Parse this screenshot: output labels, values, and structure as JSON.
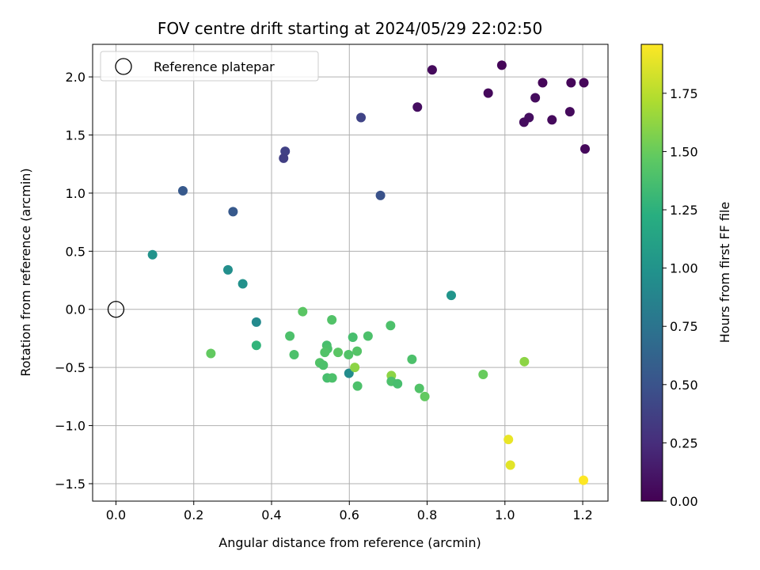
{
  "chart_data": {
    "type": "scatter",
    "title": "FOV centre drift starting at 2024/05/29 22:02:50",
    "xlabel": "Angular distance from reference (arcmin)",
    "ylabel": "Rotation from reference (arcmin)",
    "xlim": [
      -0.06,
      1.265
    ],
    "ylim": [
      -1.65,
      2.28
    ],
    "xticks": [
      0.0,
      0.2,
      0.4,
      0.6,
      0.8,
      1.0,
      1.2
    ],
    "xtick_labels": [
      "0.0",
      "0.2",
      "0.4",
      "0.6",
      "0.8",
      "1.0",
      "1.2"
    ],
    "yticks": [
      -1.5,
      -1.0,
      -0.5,
      0.0,
      0.5,
      1.0,
      1.5,
      2.0
    ],
    "ytick_labels": [
      "−1.5",
      "−1.0",
      "−0.5",
      "0.0",
      "0.5",
      "1.0",
      "1.5",
      "2.0"
    ],
    "grid": true,
    "legend": {
      "placement": "upper-left",
      "entries": [
        "Reference platepar"
      ]
    },
    "reference_point": {
      "x": 0.0,
      "y": 0.0,
      "label": "Reference platepar"
    },
    "colorbar": {
      "label": "Hours from first FF file",
      "colormap": "viridis",
      "range": [
        0.0,
        1.96
      ],
      "ticks": [
        0.0,
        0.25,
        0.5,
        0.75,
        1.0,
        1.25,
        1.5,
        1.75
      ],
      "tick_labels": [
        "0.00",
        "0.25",
        "0.50",
        "0.75",
        "1.00",
        "1.25",
        "1.50",
        "1.75"
      ]
    },
    "series": [
      {
        "points": [
          {
            "x": 0.992,
            "y": 2.1,
            "c": 0.02
          },
          {
            "x": 0.813,
            "y": 2.06,
            "c": 0.05
          },
          {
            "x": 1.097,
            "y": 1.95,
            "c": 0.03
          },
          {
            "x": 1.17,
            "y": 1.95,
            "c": 0.03
          },
          {
            "x": 1.203,
            "y": 1.95,
            "c": 0.03
          },
          {
            "x": 0.957,
            "y": 1.86,
            "c": 0.04
          },
          {
            "x": 1.078,
            "y": 1.82,
            "c": 0.06
          },
          {
            "x": 0.775,
            "y": 1.74,
            "c": 0.07
          },
          {
            "x": 1.167,
            "y": 1.7,
            "c": 0.05
          },
          {
            "x": 1.062,
            "y": 1.65,
            "c": 0.07
          },
          {
            "x": 1.121,
            "y": 1.63,
            "c": 0.05
          },
          {
            "x": 1.049,
            "y": 1.61,
            "c": 0.06
          },
          {
            "x": 1.206,
            "y": 1.38,
            "c": 0.04
          },
          {
            "x": 0.63,
            "y": 1.65,
            "c": 0.4
          },
          {
            "x": 0.435,
            "y": 1.36,
            "c": 0.38
          },
          {
            "x": 0.431,
            "y": 1.3,
            "c": 0.36
          },
          {
            "x": 0.172,
            "y": 1.02,
            "c": 0.55
          },
          {
            "x": 0.68,
            "y": 0.98,
            "c": 0.5
          },
          {
            "x": 0.301,
            "y": 0.84,
            "c": 0.55
          },
          {
            "x": 0.094,
            "y": 0.47,
            "c": 1.0
          },
          {
            "x": 0.288,
            "y": 0.34,
            "c": 0.97
          },
          {
            "x": 0.326,
            "y": 0.22,
            "c": 0.99
          },
          {
            "x": 0.862,
            "y": 0.12,
            "c": 1.02
          },
          {
            "x": 0.361,
            "y": -0.11,
            "c": 0.93
          },
          {
            "x": 0.361,
            "y": -0.31,
            "c": 1.28
          },
          {
            "x": 0.48,
            "y": -0.02,
            "c": 1.45
          },
          {
            "x": 0.555,
            "y": -0.09,
            "c": 1.42
          },
          {
            "x": 0.706,
            "y": -0.14,
            "c": 1.4
          },
          {
            "x": 0.447,
            "y": -0.23,
            "c": 1.4
          },
          {
            "x": 0.609,
            "y": -0.24,
            "c": 1.38
          },
          {
            "x": 0.648,
            "y": -0.23,
            "c": 1.4
          },
          {
            "x": 0.542,
            "y": -0.31,
            "c": 1.38
          },
          {
            "x": 0.544,
            "y": -0.34,
            "c": 1.4
          },
          {
            "x": 0.537,
            "y": -0.37,
            "c": 1.42
          },
          {
            "x": 0.571,
            "y": -0.37,
            "c": 1.45
          },
          {
            "x": 0.62,
            "y": -0.36,
            "c": 1.43
          },
          {
            "x": 0.244,
            "y": -0.38,
            "c": 1.48
          },
          {
            "x": 0.458,
            "y": -0.39,
            "c": 1.4
          },
          {
            "x": 0.598,
            "y": -0.39,
            "c": 1.42
          },
          {
            "x": 0.524,
            "y": -0.46,
            "c": 1.42
          },
          {
            "x": 0.533,
            "y": -0.48,
            "c": 1.4
          },
          {
            "x": 0.761,
            "y": -0.43,
            "c": 1.4
          },
          {
            "x": 0.599,
            "y": -0.55,
            "c": 0.95
          },
          {
            "x": 0.614,
            "y": -0.5,
            "c": 1.62
          },
          {
            "x": 0.543,
            "y": -0.59,
            "c": 1.38
          },
          {
            "x": 0.556,
            "y": -0.59,
            "c": 1.4
          },
          {
            "x": 0.708,
            "y": -0.57,
            "c": 1.62
          },
          {
            "x": 0.944,
            "y": -0.56,
            "c": 1.5
          },
          {
            "x": 1.05,
            "y": -0.45,
            "c": 1.62
          },
          {
            "x": 0.708,
            "y": -0.62,
            "c": 1.4
          },
          {
            "x": 0.724,
            "y": -0.64,
            "c": 1.38
          },
          {
            "x": 0.621,
            "y": -0.66,
            "c": 1.4
          },
          {
            "x": 0.78,
            "y": -0.68,
            "c": 1.42
          },
          {
            "x": 0.794,
            "y": -0.75,
            "c": 1.48
          },
          {
            "x": 1.009,
            "y": -1.12,
            "c": 1.9
          },
          {
            "x": 1.014,
            "y": -1.34,
            "c": 1.88
          },
          {
            "x": 1.202,
            "y": -1.47,
            "c": 1.96
          }
        ]
      }
    ]
  }
}
